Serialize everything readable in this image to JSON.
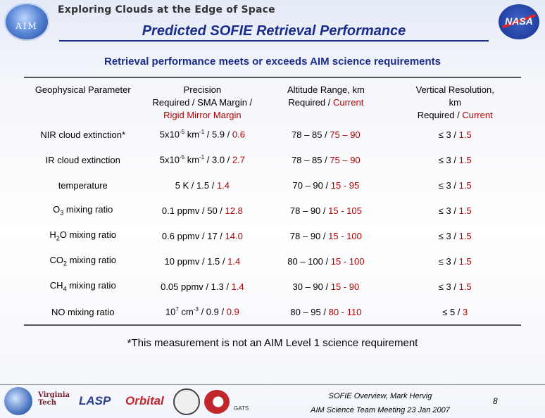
{
  "header": {
    "logo_text": "AIM",
    "tagline": "Exploring Clouds at the Edge of Space",
    "title": "Predicted SOFIE Retrieval Performance",
    "nasa_text": "NASA"
  },
  "subtitle": "Retrieval performance meets or exceeds AIM science requirements",
  "table": {
    "headers": [
      {
        "line1": "Geophysical Parameter"
      },
      {
        "line1": "Precision",
        "line2": "Required / SMA Margin /",
        "line3": "Rigid Mirror Margin"
      },
      {
        "line1": "Altitude Range, km",
        "line2a": "Required / ",
        "line2b": "Current"
      },
      {
        "line1": "Vertical Resolution,",
        "line2": "km",
        "line3a": "Required / ",
        "line3b": "Current"
      }
    ],
    "rows": [
      {
        "param": "NIR cloud extinction*",
        "prec_a": "5x10",
        "prec_exp": "-5",
        "prec_b": " km",
        "prec_exp2": "-1",
        "prec_c": " / 5.9 / ",
        "prec_d": "0.6",
        "alt_a": "78 – 85 / ",
        "alt_b": "75 – 90",
        "vr_a": "≤ 3 / ",
        "vr_b": "1.5"
      },
      {
        "param": "IR cloud extinction",
        "prec_a": "5x10",
        "prec_exp": "-5",
        "prec_b": " km",
        "prec_exp2": "-1",
        "prec_c": " / 3.0 / ",
        "prec_d": "2.7",
        "alt_a": "78 – 85 / ",
        "alt_b": "75 – 90",
        "vr_a": "≤ 3 / ",
        "vr_b": "1.5"
      },
      {
        "param": "temperature",
        "prec_a": "5 K / 1.5 / ",
        "prec_d": "1.4",
        "alt_a": "70 – 90 / ",
        "alt_b": "15 - 95",
        "vr_a": "≤ 3 / ",
        "vr_b": "1.5"
      },
      {
        "param_a": "O",
        "param_sub": "3",
        "param_b": " mixing ratio",
        "prec_a": "0.1 ppmv / 50 / ",
        "prec_d": "12.8",
        "alt_a": "78 – 90 / ",
        "alt_b": "15 - 105",
        "vr_a": "≤ 3 / ",
        "vr_b": "1.5"
      },
      {
        "param_a": "H",
        "param_sub": "2",
        "param_b": "O mixing ratio",
        "prec_a": "0.6 ppmv / 17 / ",
        "prec_d": "14.0",
        "alt_a": "78 – 90 / ",
        "alt_b": "15 - 100",
        "vr_a": "≤ 3 / ",
        "vr_b": "1.5"
      },
      {
        "param_a": "CO",
        "param_sub": "2",
        "param_b": " mixing ratio",
        "prec_a": "10 ppmv / 1.5 / ",
        "prec_d": "1.4",
        "alt_a": "80 – 100 / ",
        "alt_b": "15 - 100",
        "vr_a": "≤ 3 / ",
        "vr_b": "1.5"
      },
      {
        "param_a": "CH",
        "param_sub": "4",
        "param_b": " mixing ratio",
        "prec_a": "0.05 ppmv / 1.3 / ",
        "prec_d": "1.4",
        "alt_a": "30 – 90 / ",
        "alt_b": "15 - 90",
        "vr_a": "≤ 3 / ",
        "vr_b": "1.5"
      },
      {
        "param": "NO mixing ratio",
        "prec_a": "10",
        "prec_exp": "7",
        "prec_b": " cm",
        "prec_exp2": "-3",
        "prec_c": " / 0.9 / ",
        "prec_d": "0.9",
        "alt_a": "80 – 95 / ",
        "alt_b": "80 - 110",
        "vr_a": "≤ 5 / ",
        "vr_b": "3"
      }
    ]
  },
  "note": "*This measurement is not an AIM Level 1 science requirement",
  "footer": {
    "line1": "SOFIE Overview, Mark Hervig",
    "line2": "AIM Science Team Meeting 23 Jan 2007",
    "page": "8",
    "sponsor_vt_1": "Virginia",
    "sponsor_vt_2": "Tech",
    "sponsor_lasp": "LASP",
    "sponsor_orbital": "Orbital",
    "sponsor_gats": "GATS"
  }
}
